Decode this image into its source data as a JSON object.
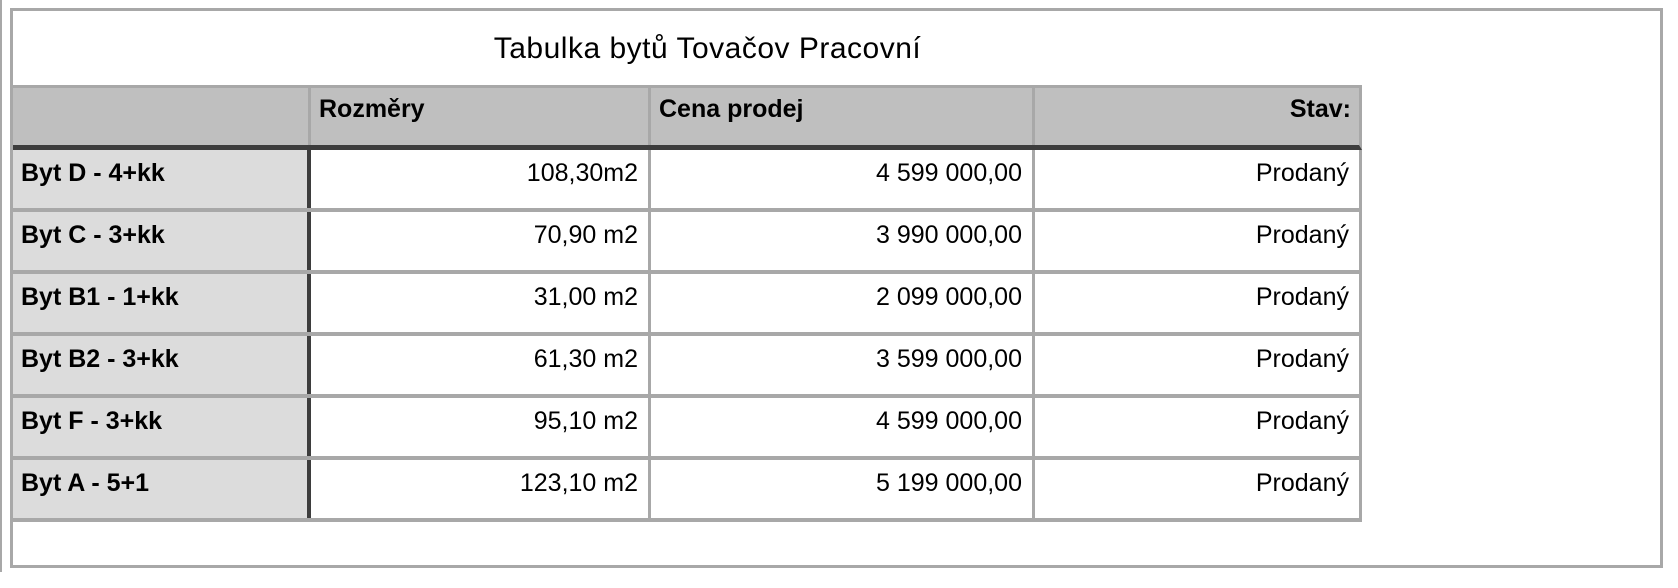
{
  "title": "Tabulka bytů Tovačov Pracovní",
  "table": {
    "columns": [
      "",
      "Rozměry",
      "Cena prodej",
      "Stav:"
    ],
    "rows": [
      {
        "name": "Byt D - 4+kk",
        "size": "108,30m2",
        "price": "4 599 000,00",
        "status": "Prodaný"
      },
      {
        "name": "Byt C - 3+kk",
        "size": "70,90 m2",
        "price": "3 990 000,00",
        "status": "Prodaný"
      },
      {
        "name": "Byt B1 - 1+kk",
        "size": "31,00 m2",
        "price": "2 099 000,00",
        "status": "Prodaný"
      },
      {
        "name": "Byt B2 - 3+kk",
        "size": "61,30 m2",
        "price": "3 599 000,00",
        "status": "Prodaný"
      },
      {
        "name": "Byt F - 3+kk",
        "size": "95,10 m2",
        "price": "4 599 000,00",
        "status": "Prodaný"
      },
      {
        "name": "Byt A - 5+1",
        "size": "123,10 m2",
        "price": "5 199 000,00",
        "status": "Prodaný"
      }
    ]
  },
  "colors": {
    "header_bg": "#bfbfbf",
    "label_col_bg": "#dcdcdc",
    "border_gray": "#a8a8a8",
    "border_dark": "#3d3d3d",
    "text": "#000000",
    "background": "#ffffff"
  }
}
